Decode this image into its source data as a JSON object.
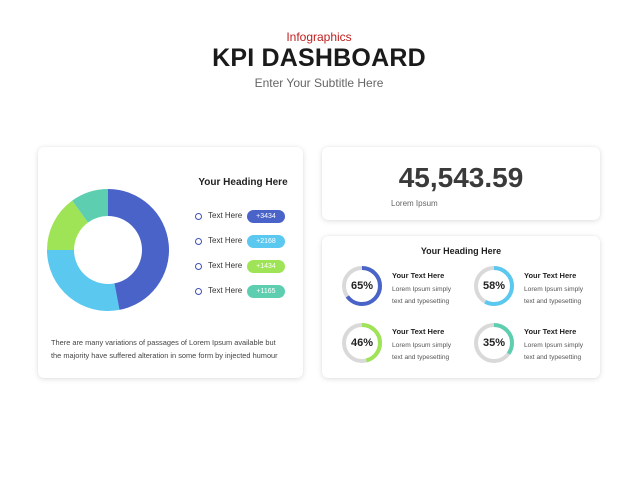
{
  "header": {
    "eyebrow": "Infographics",
    "title": "KPI DASHBOARD",
    "subtitle": "Enter Your Subtitle Here"
  },
  "left_card": {
    "heading": "Your Heading Here",
    "legend": [
      {
        "label": "Text Here",
        "value": "+3434",
        "color": "#4a63c8"
      },
      {
        "label": "Text Here",
        "value": "+2168",
        "color": "#5bc8f0"
      },
      {
        "label": "Text Here",
        "value": "+1434",
        "color": "#9fe356"
      },
      {
        "label": "Text Here",
        "value": "+1165",
        "color": "#5dcfb0"
      }
    ],
    "body_lines": [
      "There are many variations of passages of Lorem Ipsum available but",
      "the majority have suffered alteration in some form by injected humour"
    ]
  },
  "donut": {
    "segments": [
      {
        "value": 47,
        "color": "#4a63c8"
      },
      {
        "value": 28,
        "color": "#5bc8f0"
      },
      {
        "value": 15,
        "color": "#9fe356"
      },
      {
        "value": 10,
        "color": "#5dcfb0"
      }
    ]
  },
  "kpi": {
    "value": "45,543.59",
    "label": "Lorem Ipsum"
  },
  "grid_card": {
    "heading": "Your Heading Here",
    "track_color": "#d9d9d9",
    "items": [
      {
        "percent": 65,
        "percent_label": "65%",
        "color": "#4a63c8",
        "title": "Your Text Here",
        "desc_1": "Lorem Ipsum simply",
        "desc_2": "text and typesetting"
      },
      {
        "percent": 58,
        "percent_label": "58%",
        "color": "#5bc8f0",
        "title": "Your Text Here",
        "desc_1": "Lorem Ipsum simply",
        "desc_2": "text and typesetting"
      },
      {
        "percent": 46,
        "percent_label": "46%",
        "color": "#9fe356",
        "title": "Your Text Here",
        "desc_1": "Lorem Ipsum simply",
        "desc_2": "text and typesetting"
      },
      {
        "percent": 35,
        "percent_label": "35%",
        "color": "#5dcfb0",
        "title": "Your Text Here",
        "desc_1": "Lorem Ipsum simply",
        "desc_2": "text and typesetting"
      }
    ]
  }
}
